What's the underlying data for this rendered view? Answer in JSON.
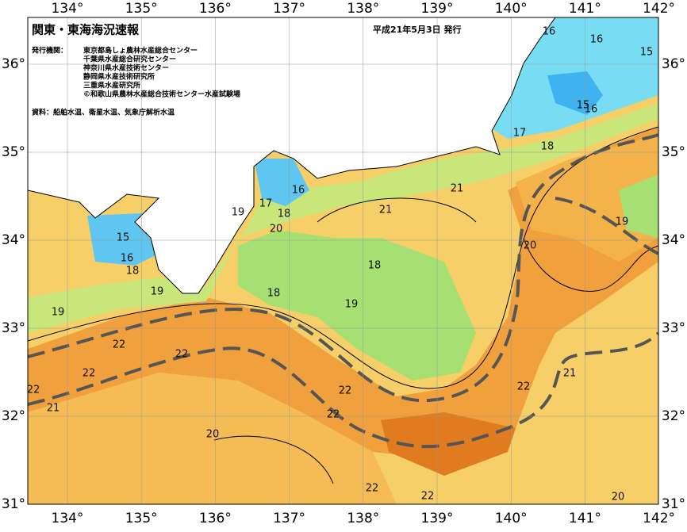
{
  "header": {
    "title": "関東・東海海況速報",
    "date": "平成21年5月3日 発行"
  },
  "issuers": {
    "label": "発行機関：",
    "organizations": [
      "東京都島しょ農林水産総合センター",
      "千葉県水産総合研究センター",
      "神奈川県水産技術センター",
      "静岡県水産技術研究所",
      "三重県水産研究所",
      "©和歌山県農林水産総合技術センター水産試験場"
    ]
  },
  "source": "資料：船舶水温、衛星水温、気象庁解析水温",
  "longitudes": [
    "134°",
    "135°",
    "136°",
    "137°",
    "138°",
    "139°",
    "140°",
    "141°",
    "142°"
  ],
  "latitudes": [
    "36°",
    "35°",
    "34°",
    "33°",
    "32°",
    "31°"
  ],
  "contour_labels": [
    "16",
    "16",
    "15",
    "15",
    "16",
    "17",
    "18",
    "16",
    "17",
    "18",
    "19",
    "20",
    "21",
    "21",
    "15",
    "16",
    "18",
    "19",
    "19",
    "18",
    "18",
    "19",
    "20",
    "19",
    "22",
    "22",
    "22",
    "22",
    "21",
    "22",
    "22",
    "22",
    "21",
    "20",
    "22",
    "22",
    "20"
  ]
}
